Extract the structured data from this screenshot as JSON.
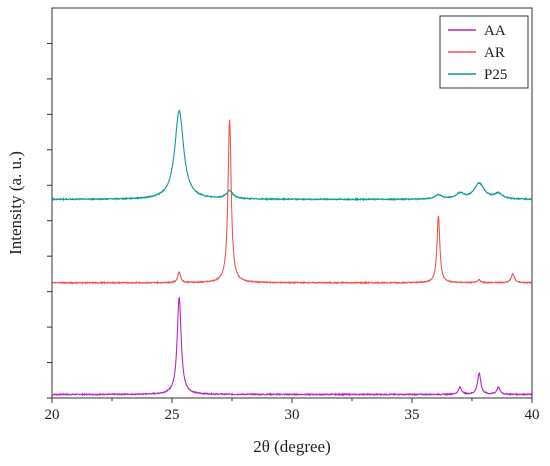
{
  "chart_data": {
    "type": "line",
    "xlabel": "2θ (degree)",
    "ylabel": "Intensity (a. u.)",
    "xlim": [
      20,
      40
    ],
    "xticks": [
      "20",
      "25",
      "30",
      "35",
      "40"
    ],
    "ylim": [
      0,
      11
    ],
    "y_tick_labels_shown": false,
    "grid": false,
    "legend_position": "top-right",
    "series": [
      {
        "name": "AA",
        "color": "#bb22cc",
        "baseline": 0.1,
        "noise": 0.015,
        "peaks": [
          {
            "x": 25.3,
            "height": 2.75,
            "width": 0.1
          },
          {
            "x": 37.0,
            "height": 0.2,
            "width": 0.08
          },
          {
            "x": 37.8,
            "height": 0.6,
            "width": 0.08
          },
          {
            "x": 38.6,
            "height": 0.2,
            "width": 0.08
          }
        ]
      },
      {
        "name": "AR",
        "color": "#ee5555",
        "baseline": 3.25,
        "noise": 0.015,
        "peaks": [
          {
            "x": 25.3,
            "height": 0.3,
            "width": 0.07
          },
          {
            "x": 27.4,
            "height": 4.6,
            "width": 0.08
          },
          {
            "x": 36.1,
            "height": 1.9,
            "width": 0.07
          },
          {
            "x": 37.8,
            "height": 0.08,
            "width": 0.07
          },
          {
            "x": 39.2,
            "height": 0.25,
            "width": 0.08
          }
        ]
      },
      {
        "name": "P25",
        "color": "#119999",
        "baseline": 5.6,
        "noise": 0.015,
        "peaks": [
          {
            "x": 25.3,
            "height": 2.5,
            "width": 0.22
          },
          {
            "x": 27.4,
            "height": 0.22,
            "width": 0.17
          },
          {
            "x": 36.1,
            "height": 0.12,
            "width": 0.18
          },
          {
            "x": 37.0,
            "height": 0.15,
            "width": 0.2
          },
          {
            "x": 37.8,
            "height": 0.45,
            "width": 0.25
          },
          {
            "x": 38.6,
            "height": 0.15,
            "width": 0.2
          }
        ]
      }
    ]
  }
}
